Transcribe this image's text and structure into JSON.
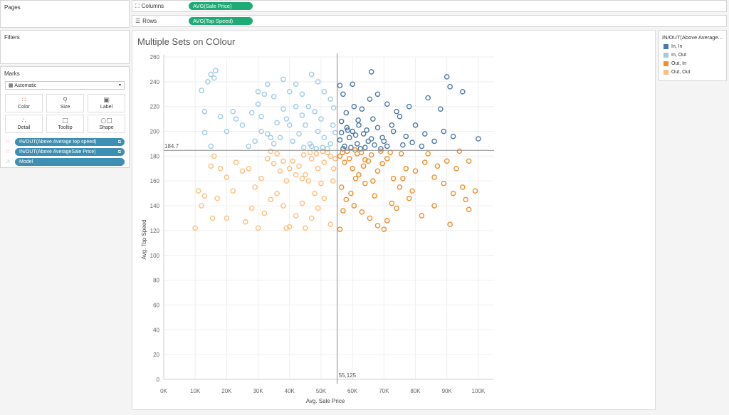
{
  "pages": {
    "title": "Pages"
  },
  "filters": {
    "title": "Filters"
  },
  "shelves": {
    "columns": {
      "label": "Columns",
      "pill": "AVG(Sale Price)"
    },
    "rows": {
      "label": "Rows",
      "pill": "AVG(Top Speed)"
    }
  },
  "marks": {
    "title": "Marks",
    "mark_type": "Automatic",
    "cards": [
      {
        "label": "Color",
        "icon": "color-icon"
      },
      {
        "label": "Size",
        "icon": "size-icon"
      },
      {
        "label": "Label",
        "icon": "label-icon"
      },
      {
        "label": "Detail",
        "icon": "detail-icon"
      },
      {
        "label": "Tooltip",
        "icon": "tooltip-icon"
      },
      {
        "label": "Shape",
        "icon": "shape-icon"
      }
    ],
    "pills": [
      {
        "label": "IN/OUT(Above Average top speed)",
        "role": "color"
      },
      {
        "label": "IN/OUT(Above AverageSale Price)",
        "role": "color"
      },
      {
        "label": "Model",
        "role": "detail"
      }
    ]
  },
  "legend": {
    "title": "IN/OUT(Above Average...",
    "items": [
      {
        "label": "In, In",
        "color": "#4e79a7"
      },
      {
        "label": "In, Out",
        "color": "#a0cbe8"
      },
      {
        "label": "Out, In",
        "color": "#f28e2b"
      },
      {
        "label": "Out, Out",
        "color": "#ffbe7d"
      }
    ]
  },
  "chart_data": {
    "type": "scatter",
    "title": "Multiple Sets on COlour",
    "xlabel": "Avg. Sale Price",
    "ylabel": "Avg. Top Speed",
    "xlim": [
      0,
      105000
    ],
    "ylim": [
      0,
      260
    ],
    "x_ticks": [
      {
        "value": 0,
        "label": "0K"
      },
      {
        "value": 10000,
        "label": "10K"
      },
      {
        "value": 20000,
        "label": "20K"
      },
      {
        "value": 30000,
        "label": "30K"
      },
      {
        "value": 40000,
        "label": "40K"
      },
      {
        "value": 50000,
        "label": "50K"
      },
      {
        "value": 60000,
        "label": "60K"
      },
      {
        "value": 70000,
        "label": "70K"
      },
      {
        "value": 80000,
        "label": "80K"
      },
      {
        "value": 90000,
        "label": "90K"
      },
      {
        "value": 100000,
        "label": "100K"
      }
    ],
    "y_ticks": [
      {
        "value": 0,
        "label": "0"
      },
      {
        "value": 20,
        "label": "20"
      },
      {
        "value": 40,
        "label": "40"
      },
      {
        "value": 60,
        "label": "60"
      },
      {
        "value": 80,
        "label": "80"
      },
      {
        "value": 100,
        "label": "100"
      },
      {
        "value": 120,
        "label": "120"
      },
      {
        "value": 140,
        "label": "140"
      },
      {
        "value": 160,
        "label": "160"
      },
      {
        "value": 180,
        "label": "180"
      },
      {
        "value": 200,
        "label": "200"
      },
      {
        "value": 220,
        "label": "220"
      },
      {
        "value": 240,
        "label": "240"
      },
      {
        "value": 260,
        "label": "260"
      }
    ],
    "reference_lines": [
      {
        "axis": "y",
        "value": 184.7,
        "label": "184.7"
      },
      {
        "axis": "x",
        "value": 55125,
        "label": "55,125"
      }
    ],
    "grid": true,
    "legend_position": "right",
    "series": [
      {
        "name": "In, In",
        "color": "#4e79a7",
        "points": [
          [
            56000,
            193
          ],
          [
            57500,
            188
          ],
          [
            59000,
            195
          ],
          [
            60000,
            200
          ],
          [
            61500,
            190
          ],
          [
            62000,
            205
          ],
          [
            63500,
            198
          ],
          [
            65000,
            192
          ],
          [
            66500,
            210
          ],
          [
            68000,
            203
          ],
          [
            69500,
            195
          ],
          [
            71000,
            188
          ],
          [
            73000,
            200
          ],
          [
            75000,
            212
          ],
          [
            77000,
            196
          ],
          [
            80000,
            205
          ],
          [
            83000,
            198
          ],
          [
            86000,
            192
          ],
          [
            89000,
            200
          ],
          [
            92000,
            196
          ],
          [
            100000,
            194
          ],
          [
            56500,
            208
          ],
          [
            58000,
            215
          ],
          [
            60500,
            220
          ],
          [
            63000,
            218
          ],
          [
            65500,
            226
          ],
          [
            68000,
            230
          ],
          [
            71000,
            222
          ],
          [
            74000,
            216
          ],
          [
            78000,
            220
          ],
          [
            84000,
            227
          ],
          [
            88000,
            218
          ],
          [
            91000,
            236
          ],
          [
            95000,
            232
          ],
          [
            90000,
            244
          ],
          [
            66000,
            248
          ],
          [
            60000,
            238
          ],
          [
            57000,
            230
          ],
          [
            56000,
            237
          ],
          [
            58500,
            201
          ],
          [
            61000,
            197
          ],
          [
            64000,
            187
          ],
          [
            67000,
            189
          ],
          [
            70000,
            192
          ],
          [
            72500,
            205
          ],
          [
            76000,
            189
          ],
          [
            79000,
            191
          ],
          [
            82000,
            188
          ],
          [
            57000,
            186
          ],
          [
            59500,
            187
          ],
          [
            62500,
            186
          ],
          [
            69000,
            186
          ],
          [
            56500,
            199
          ],
          [
            58200,
            203
          ],
          [
            66000,
            194
          ],
          [
            64500,
            201
          ],
          [
            61800,
            209
          ]
        ]
      },
      {
        "name": "In, Out",
        "color": "#a0cbe8",
        "points": [
          [
            53000,
            190
          ],
          [
            51000,
            195
          ],
          [
            49000,
            200
          ],
          [
            47000,
            188
          ],
          [
            45000,
            205
          ],
          [
            43000,
            198
          ],
          [
            41000,
            192
          ],
          [
            39000,
            210
          ],
          [
            37000,
            195
          ],
          [
            35000,
            190
          ],
          [
            33000,
            198
          ],
          [
            31000,
            200
          ],
          [
            29000,
            192
          ],
          [
            27000,
            188
          ],
          [
            25000,
            205
          ],
          [
            23000,
            210
          ],
          [
            20000,
            200
          ],
          [
            18000,
            212
          ],
          [
            15000,
            188
          ],
          [
            13000,
            199
          ],
          [
            13000,
            216
          ],
          [
            12000,
            233
          ],
          [
            14000,
            240
          ],
          [
            15000,
            246
          ],
          [
            16000,
            243
          ],
          [
            16500,
            249
          ],
          [
            22000,
            216
          ],
          [
            28000,
            215
          ],
          [
            30000,
            222
          ],
          [
            32000,
            230
          ],
          [
            33000,
            238
          ],
          [
            35000,
            228
          ],
          [
            38000,
            242
          ],
          [
            40000,
            232
          ],
          [
            42000,
            238
          ],
          [
            44000,
            230
          ],
          [
            47000,
            246
          ],
          [
            49000,
            240
          ],
          [
            51000,
            232
          ],
          [
            53000,
            226
          ],
          [
            54000,
            219
          ],
          [
            50000,
            210
          ],
          [
            48000,
            216
          ],
          [
            46000,
            220
          ],
          [
            44000,
            213
          ],
          [
            42000,
            220
          ],
          [
            40000,
            205
          ],
          [
            38000,
            218
          ],
          [
            36000,
            207
          ],
          [
            34000,
            195
          ],
          [
            31000,
            212
          ],
          [
            30000,
            232
          ],
          [
            52000,
            186
          ],
          [
            50500,
            187
          ],
          [
            48500,
            186
          ],
          [
            46500,
            190
          ],
          [
            44500,
            187
          ],
          [
            54500,
            199
          ],
          [
            53800,
            205
          ]
        ]
      },
      {
        "name": "Out, In",
        "color": "#f28e2b",
        "points": [
          [
            56000,
            180
          ],
          [
            57500,
            175
          ],
          [
            59000,
            178
          ],
          [
            60000,
            170
          ],
          [
            61500,
            182
          ],
          [
            62000,
            165
          ],
          [
            63500,
            172
          ],
          [
            65000,
            176
          ],
          [
            66500,
            160
          ],
          [
            68000,
            168
          ],
          [
            69500,
            174
          ],
          [
            71000,
            178
          ],
          [
            73000,
            162
          ],
          [
            75000,
            155
          ],
          [
            77000,
            170
          ],
          [
            80000,
            168
          ],
          [
            83000,
            175
          ],
          [
            86000,
            163
          ],
          [
            89000,
            158
          ],
          [
            92000,
            150
          ],
          [
            95000,
            155
          ],
          [
            96000,
            145
          ],
          [
            97000,
            137
          ],
          [
            99000,
            152
          ],
          [
            56500,
            155
          ],
          [
            58000,
            145
          ],
          [
            60500,
            140
          ],
          [
            63000,
            135
          ],
          [
            65500,
            130
          ],
          [
            68000,
            124
          ],
          [
            71000,
            128
          ],
          [
            74000,
            138
          ],
          [
            78000,
            146
          ],
          [
            82000,
            132
          ],
          [
            86000,
            140
          ],
          [
            91000,
            125
          ],
          [
            56000,
            121
          ],
          [
            57000,
            136
          ],
          [
            59500,
            150
          ],
          [
            61000,
            162
          ],
          [
            64000,
            158
          ],
          [
            67000,
            148
          ],
          [
            70000,
            121
          ],
          [
            72500,
            142
          ],
          [
            76000,
            162
          ],
          [
            79000,
            152
          ],
          [
            84000,
            182
          ],
          [
            87000,
            172
          ],
          [
            90000,
            176
          ],
          [
            93000,
            170
          ],
          [
            94000,
            184
          ],
          [
            97000,
            176
          ],
          [
            56800,
            183
          ],
          [
            58300,
            184
          ],
          [
            62800,
            183
          ],
          [
            66000,
            181
          ],
          [
            69000,
            184
          ],
          [
            72000,
            183
          ],
          [
            75500,
            182
          ],
          [
            64000,
            177
          ],
          [
            60800,
            185
          ]
        ]
      },
      {
        "name": "Out, Out",
        "color": "#ffbe7d",
        "points": [
          [
            53000,
            180
          ],
          [
            51000,
            175
          ],
          [
            49000,
            170
          ],
          [
            47000,
            178
          ],
          [
            45000,
            165
          ],
          [
            43000,
            172
          ],
          [
            41000,
            176
          ],
          [
            39000,
            160
          ],
          [
            37000,
            168
          ],
          [
            35000,
            174
          ],
          [
            33000,
            178
          ],
          [
            31000,
            162
          ],
          [
            29000,
            155
          ],
          [
            27000,
            170
          ],
          [
            25000,
            168
          ],
          [
            23000,
            175
          ],
          [
            20000,
            163
          ],
          [
            18000,
            170
          ],
          [
            15000,
            172
          ],
          [
            13000,
            148
          ],
          [
            12000,
            140
          ],
          [
            11000,
            152
          ],
          [
            10000,
            122
          ],
          [
            15500,
            130
          ],
          [
            17000,
            146
          ],
          [
            20000,
            130
          ],
          [
            22000,
            152
          ],
          [
            26000,
            127
          ],
          [
            28000,
            138
          ],
          [
            30000,
            122
          ],
          [
            32000,
            134
          ],
          [
            34000,
            145
          ],
          [
            36000,
            150
          ],
          [
            38000,
            140
          ],
          [
            39000,
            122
          ],
          [
            40000,
            123
          ],
          [
            42000,
            132
          ],
          [
            44000,
            142
          ],
          [
            45000,
            122
          ],
          [
            47000,
            130
          ],
          [
            49000,
            138
          ],
          [
            51000,
            146
          ],
          [
            53000,
            125
          ],
          [
            54000,
            170
          ],
          [
            50000,
            158
          ],
          [
            48000,
            150
          ],
          [
            46000,
            160
          ],
          [
            44000,
            162
          ],
          [
            42000,
            165
          ],
          [
            40000,
            170
          ],
          [
            38000,
            176
          ],
          [
            36000,
            182
          ],
          [
            34000,
            184
          ],
          [
            52000,
            183
          ],
          [
            50500,
            184
          ],
          [
            48500,
            182
          ],
          [
            46500,
            183
          ],
          [
            44500,
            181
          ],
          [
            54500,
            178
          ],
          [
            53800,
            160
          ],
          [
            16000,
            180
          ]
        ]
      }
    ]
  }
}
